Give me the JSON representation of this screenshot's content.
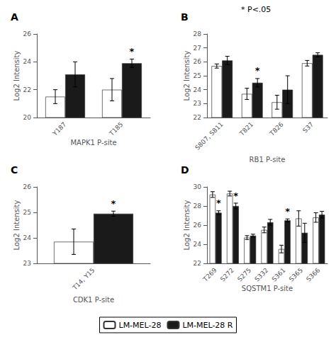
{
  "chart_data": [
    {
      "type": "bar",
      "title": "A",
      "xlabel": "MAPK1 P-site",
      "ylabel": "Log2 Intensity",
      "categories": [
        "Y187",
        "T185"
      ],
      "series": [
        {
          "name": "LM-MEL-28",
          "color": "#FFFFFF",
          "edge_color": "#333333",
          "values": [
            21.5,
            22.0
          ],
          "errors": [
            0.5,
            0.8
          ]
        },
        {
          "name": "LM-MEL-28 R",
          "color": "#1A1A1A",
          "edge_color": "#333333",
          "values": [
            23.1,
            23.9
          ],
          "errors": [
            0.9,
            0.3
          ]
        }
      ],
      "error_color": "#000000",
      "ylim": [
        20,
        26
      ],
      "yticks": [
        20,
        22,
        24,
        26
      ],
      "grid": false,
      "annotations": [
        {
          "text": "*",
          "series": "LM-MEL-28 R",
          "category": "T185"
        }
      ]
    },
    {
      "type": "bar",
      "title": "B",
      "xlabel": "RB1 P-site",
      "ylabel": "Log2 Intensity",
      "categories": [
        "S807, S811",
        "T821",
        "T826",
        "S37"
      ],
      "series": [
        {
          "name": "LM-MEL-28",
          "color": "#FFFFFF",
          "edge_color": "#333333",
          "values": [
            25.7,
            23.7,
            23.1,
            25.9
          ],
          "errors": [
            0.15,
            0.4,
            0.5,
            0.2
          ]
        },
        {
          "name": "LM-MEL-28 R",
          "color": "#1A1A1A",
          "edge_color": "#333333",
          "values": [
            26.1,
            24.5,
            24.0,
            26.5
          ],
          "errors": [
            0.3,
            0.3,
            1.0,
            0.15
          ]
        }
      ],
      "error_color": "#000000",
      "ylim": [
        22,
        28
      ],
      "yticks": [
        22,
        23,
        24,
        25,
        26,
        27,
        28
      ],
      "grid": false,
      "annotations": [
        {
          "text": "*",
          "series": "LM-MEL-28 R",
          "category": "T821"
        },
        {
          "text": "* P<.05"
        }
      ]
    },
    {
      "type": "bar",
      "title": "C",
      "xlabel": "CDK1 P-site",
      "ylabel": "Log2 Intensity",
      "categories": [
        "T14, Y15"
      ],
      "series": [
        {
          "name": "LM-MEL-28",
          "color": "#FFFFFF",
          "edge_color": "#333333",
          "values": [
            23.85
          ],
          "errors": [
            0.5
          ]
        },
        {
          "name": "LM-MEL-28 R",
          "color": "#1A1A1A",
          "edge_color": "#333333",
          "values": [
            24.95
          ],
          "errors": [
            0.1
          ]
        }
      ],
      "error_color": "#000000",
      "ylim": [
        23,
        26
      ],
      "yticks": [
        23,
        24,
        25,
        26
      ],
      "grid": false,
      "annotations": [
        {
          "text": "*",
          "series": "LM-MEL-28 R",
          "category": "T14, Y15"
        }
      ]
    },
    {
      "type": "bar",
      "title": "D",
      "xlabel": "SQSTM1 P-site",
      "ylabel": "Log2 Intensity",
      "categories": [
        "T269",
        "S272",
        "S275",
        "S332",
        "S361",
        "S365",
        "S366"
      ],
      "series": [
        {
          "name": "LM-MEL-28",
          "color": "#FFFFFF",
          "edge_color": "#333333",
          "values": [
            29.2,
            29.3,
            24.7,
            25.5,
            23.5,
            26.7,
            26.8
          ],
          "errors": [
            0.3,
            0.25,
            0.2,
            0.3,
            0.4,
            0.8,
            0.5
          ]
        },
        {
          "name": "LM-MEL-28 R",
          "color": "#1A1A1A",
          "edge_color": "#333333",
          "values": [
            27.3,
            28.0,
            24.9,
            26.3,
            26.5,
            25.2,
            27.1
          ],
          "errors": [
            0.2,
            0.3,
            0.15,
            0.3,
            0.15,
            1.0,
            0.35
          ]
        }
      ],
      "error_color": "#000000",
      "ylim": [
        22,
        30
      ],
      "yticks": [
        22,
        24,
        26,
        28,
        30
      ],
      "grid": false,
      "legend": "bottom",
      "annotations": [
        {
          "text": "*",
          "series": "LM-MEL-28 R",
          "category": "T269"
        },
        {
          "text": "*",
          "series": "LM-MEL-28 R",
          "category": "S272"
        },
        {
          "text": "*",
          "series": "LM-MEL-28 R",
          "category": "S361"
        }
      ]
    }
  ]
}
